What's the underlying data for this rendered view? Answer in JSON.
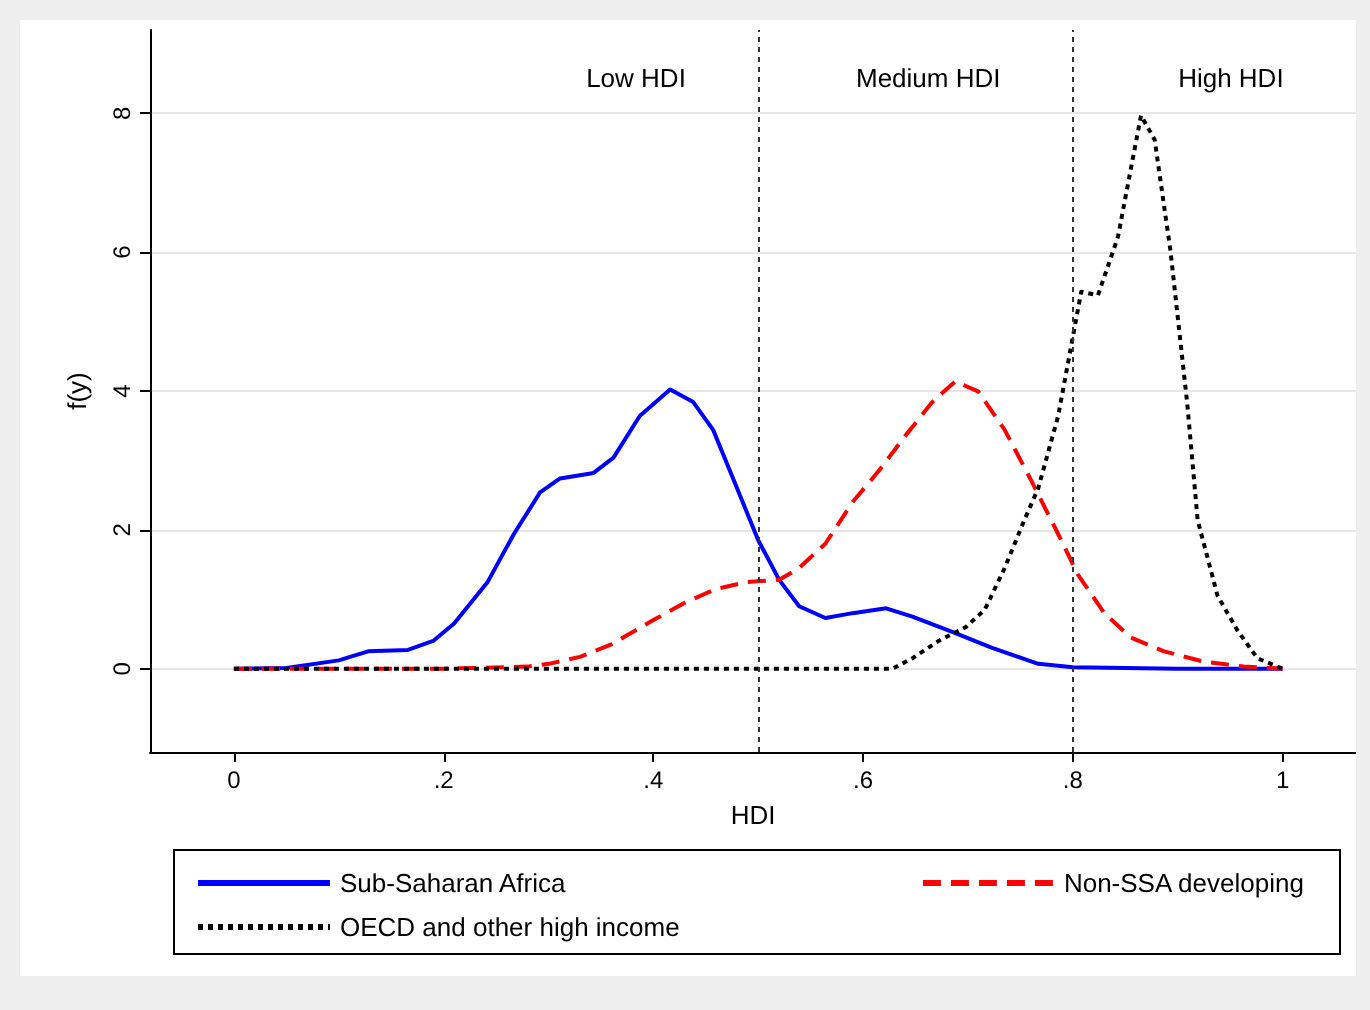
{
  "chart_data": {
    "type": "line",
    "xlabel": "HDI",
    "ylabel": "f(y)",
    "xlim": [
      -0.08,
      1.07
    ],
    "ylim": [
      -1.2,
      9.2
    ],
    "xticks": [
      {
        "value": 0,
        "label": "0"
      },
      {
        "value": 0.2,
        "label": ".2"
      },
      {
        "value": 0.4,
        "label": ".4"
      },
      {
        "value": 0.6,
        "label": ".6"
      },
      {
        "value": 0.8,
        "label": ".8"
      },
      {
        "value": 1,
        "label": "1"
      }
    ],
    "yticks": [
      0,
      2,
      4,
      6,
      8
    ],
    "grid": "y",
    "legend": "bottom",
    "marker": "none",
    "ref_lines": [
      {
        "axis": "x",
        "value": 0.5,
        "color": "#333333",
        "line_style": "dotted"
      },
      {
        "axis": "x",
        "value": 0.8,
        "color": "#333333",
        "line_style": "dotted"
      }
    ],
    "annotations": [
      "Low HDI",
      "Medium HDI",
      "High HDI"
    ],
    "series": [
      {
        "name": "Sub-Saharan Africa",
        "color": "#0000ff",
        "line_style": "solid",
        "x": [
          0,
          0.05,
          0.1,
          0.128,
          0.166,
          0.19,
          0.21,
          0.242,
          0.267,
          0.292,
          0.311,
          0.343,
          0.362,
          0.387,
          0.416,
          0.438,
          0.457,
          0.476,
          0.5,
          0.52,
          0.539,
          0.564,
          0.59,
          0.622,
          0.647,
          0.685,
          0.723,
          0.767,
          0.8,
          0.9,
          1
        ],
        "values": [
          0,
          0.01,
          0.12,
          0.25,
          0.27,
          0.4,
          0.65,
          1.25,
          1.94,
          2.54,
          2.74,
          2.82,
          3.04,
          3.64,
          4.02,
          3.84,
          3.44,
          2.74,
          1.85,
          1.28,
          0.9,
          0.73,
          0.8,
          0.87,
          0.75,
          0.53,
          0.3,
          0.07,
          0.02,
          0,
          0
        ]
      },
      {
        "name": "Non-SSA developing",
        "color": "#ff0000",
        "line_style": "dashed",
        "x": [
          0,
          0.2,
          0.28,
          0.3,
          0.33,
          0.36,
          0.4,
          0.43,
          0.46,
          0.49,
          0.52,
          0.539,
          0.564,
          0.59,
          0.615,
          0.64,
          0.666,
          0.688,
          0.71,
          0.735,
          0.761,
          0.786,
          0.805,
          0.83,
          0.855,
          0.887,
          0.925,
          0.963,
          1
        ],
        "values": [
          0,
          0,
          0.03,
          0.07,
          0.17,
          0.35,
          0.7,
          0.95,
          1.15,
          1.25,
          1.28,
          1.45,
          1.8,
          2.4,
          2.85,
          3.35,
          3.84,
          4.14,
          3.99,
          3.44,
          2.69,
          1.94,
          1.35,
          0.8,
          0.45,
          0.25,
          0.1,
          0.03,
          0
        ]
      },
      {
        "name": "OECD and other high income",
        "color": "#000000",
        "line_style": "dotted",
        "x": [
          0,
          0.3,
          0.628,
          0.647,
          0.672,
          0.698,
          0.716,
          0.735,
          0.754,
          0.767,
          0.786,
          0.808,
          0.824,
          0.843,
          0.865,
          0.878,
          0.893,
          0.909,
          0.919,
          0.938,
          0.957,
          0.976,
          1
        ],
        "values": [
          0,
          0,
          0,
          0.15,
          0.4,
          0.6,
          0.85,
          1.45,
          2.15,
          2.6,
          3.64,
          5.43,
          5.38,
          6.22,
          7.97,
          7.62,
          6.03,
          3.83,
          2.14,
          1.05,
          0.55,
          0.15,
          0
        ]
      }
    ]
  }
}
